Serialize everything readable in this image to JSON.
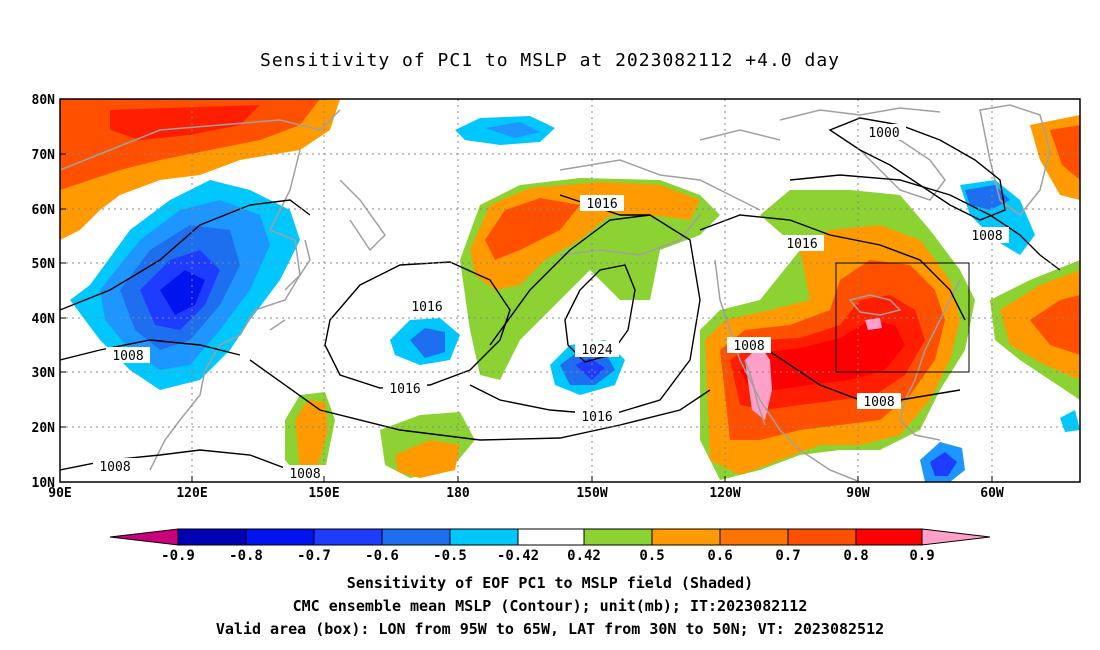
{
  "title": "Sensitivity of PC1 to MSLP at 2023082112 +4.0 day",
  "map": {
    "lat_labels": [
      "80N",
      "70N",
      "60N",
      "50N",
      "40N",
      "30N",
      "20N",
      "10N"
    ],
    "lon_labels": [
      "90E",
      "120E",
      "150E",
      "180",
      "150W",
      "120W",
      "90W",
      "60W"
    ],
    "contour_labels": [
      "1000",
      "1008",
      "1016",
      "1016",
      "1016",
      "1024",
      "1016",
      "1016",
      "1008",
      "1008",
      "1008",
      "1008"
    ],
    "colors": {
      "neg_extreme": "#c8007a",
      "neg90": "#0000b4",
      "neg80": "#0014f0",
      "neg70": "#1e3cff",
      "neg60": "#1e6ef0",
      "neg50": "#1e96ff",
      "neg42": "#00c8ff",
      "pos42": "#8cd232",
      "pos50": "#ff9b00",
      "pos60": "#ff7300",
      "pos70": "#ff5000",
      "pos80": "#ff1e00",
      "pos90": "#ff0000",
      "pos_extreme": "#ffa0c8",
      "coast": "#a0a0a0",
      "contour": "#000000"
    }
  },
  "colorbar": {
    "labels": [
      "-0.9",
      "-0.8",
      "-0.7",
      "-0.6",
      "-0.5",
      "-0.42",
      "0.42",
      "0.5",
      "0.6",
      "0.7",
      "0.8",
      "0.9"
    ]
  },
  "captions": {
    "line1": "Sensitivity of EOF PC1 to MSLP field (Shaded)",
    "line2": "CMC ensemble mean MSLP (Contour); unit(mb); IT:2023082112",
    "line3": "Valid area (box): LON from 95W to 65W, LAT from 30N to 50N; VT: 2023082512"
  }
}
